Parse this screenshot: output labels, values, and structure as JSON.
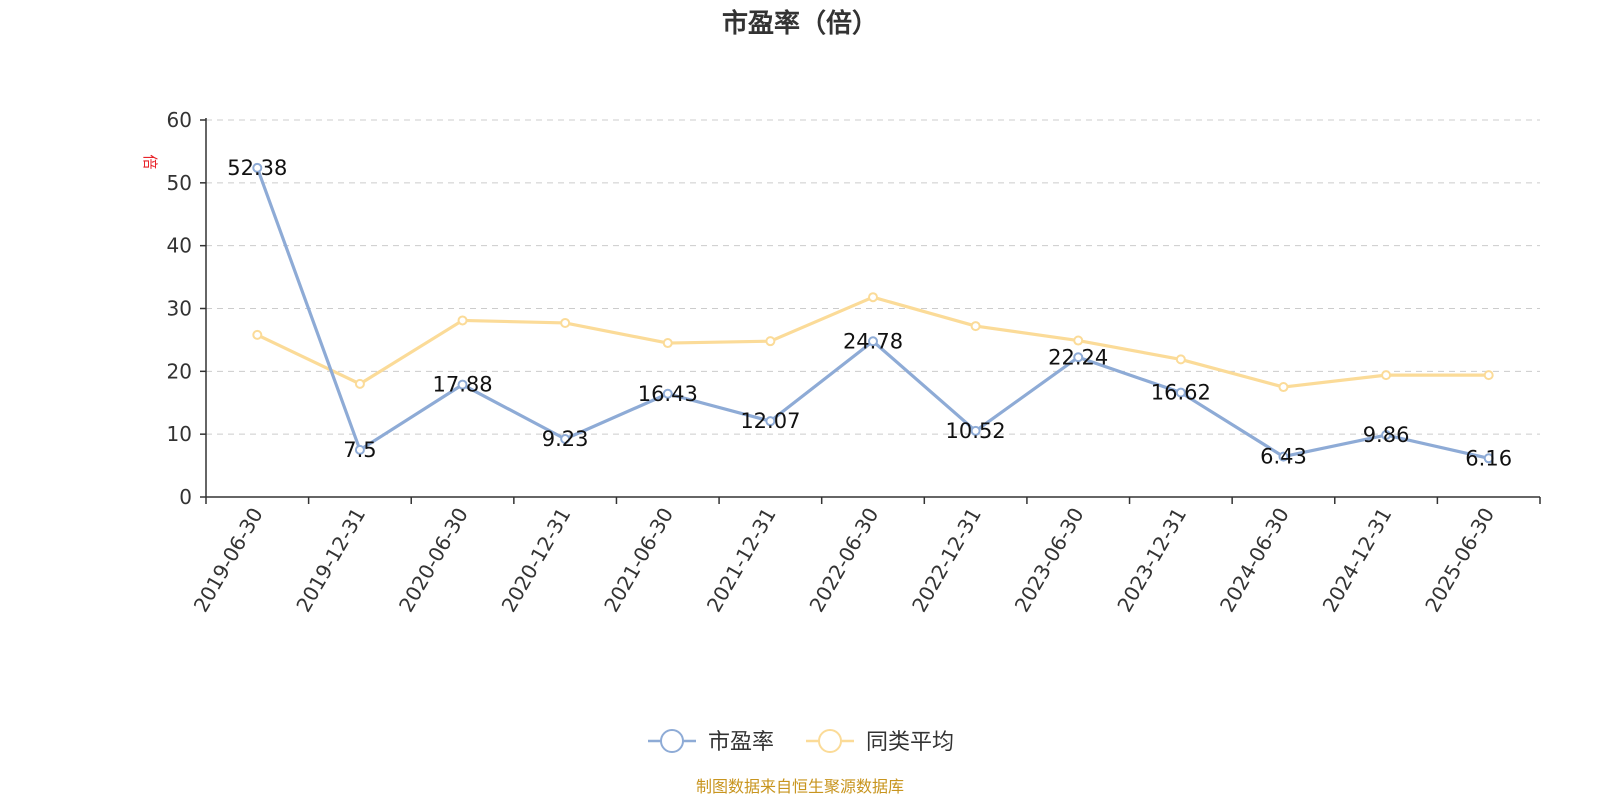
{
  "chart_data": {
    "type": "line",
    "title": "市盈率（倍）",
    "unit_label": "倍",
    "x": [
      "2019-06-30",
      "2019-12-31",
      "2020-06-30",
      "2020-12-31",
      "2021-06-30",
      "2021-12-31",
      "2022-06-30",
      "2022-12-31",
      "2023-06-30",
      "2023-12-31",
      "2024-06-30",
      "2024-12-31",
      "2025-06-30"
    ],
    "series": [
      {
        "name": "市盈率",
        "color": "#8eabd6",
        "values": [
          52.38,
          7.5,
          17.88,
          9.23,
          16.43,
          12.07,
          24.78,
          10.52,
          22.24,
          16.62,
          6.43,
          9.86,
          6.16
        ],
        "labels_shown": true
      },
      {
        "name": "同类平均",
        "color": "#fbdb98",
        "values": [
          25.8,
          18.0,
          28.1,
          27.7,
          24.5,
          24.8,
          31.8,
          27.2,
          24.9,
          21.9,
          17.5,
          19.4,
          19.4
        ],
        "labels_shown": false
      }
    ],
    "ylim": [
      0,
      60
    ],
    "yticks": [
      0,
      10,
      20,
      30,
      40,
      50,
      60
    ],
    "grid": "horizontal dashed",
    "legend_position": "bottom-center"
  },
  "source_note": "制图数据来自恒生聚源数据库"
}
